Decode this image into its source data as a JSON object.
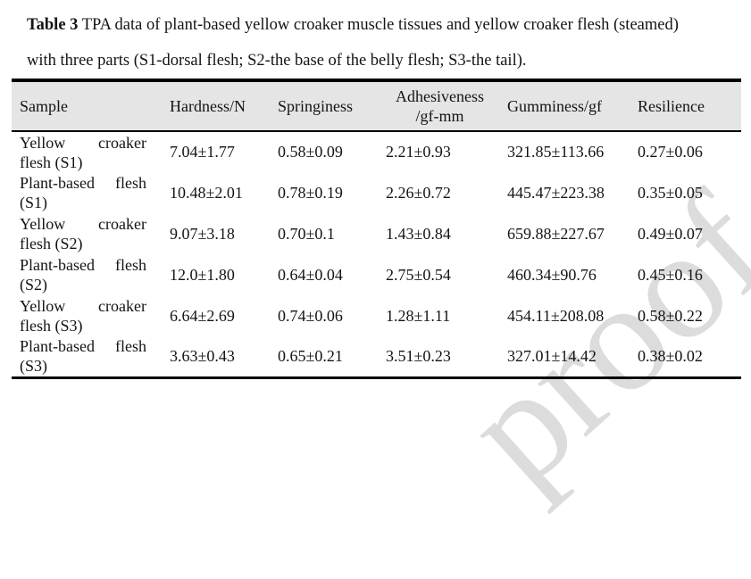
{
  "caption": {
    "label": "Table 3",
    "title": " TPA data of plant-based yellow croaker muscle tissues and yellow croaker flesh (steamed)",
    "line2": "with three parts (S1-dorsal flesh; S2-the base of the belly flesh; S3-the tail)."
  },
  "table": {
    "columns": [
      {
        "label": "Sample"
      },
      {
        "label": "Hardness/N"
      },
      {
        "label": "Springiness"
      },
      {
        "label": "Adhesiveness",
        "label2": "/gf-mm"
      },
      {
        "label": "Gumminess/gf"
      },
      {
        "label": "Resilience"
      }
    ],
    "rows": [
      {
        "sample": "Yellow croaker flesh (S1)",
        "hardness": "7.04±1.77",
        "springiness": "0.58±0.09",
        "adhesiveness": "2.21±0.93",
        "gumminess": "321.85±113.66",
        "resilience": "0.27±0.06"
      },
      {
        "sample": "Plant-based flesh (S1)",
        "hardness": "10.48±2.01",
        "springiness": "0.78±0.19",
        "adhesiveness": "2.26±0.72",
        "gumminess": "445.47±223.38",
        "resilience": "0.35±0.05"
      },
      {
        "sample": "Yellow croaker flesh (S2)",
        "hardness": "9.07±3.18",
        "springiness": "0.70±0.1",
        "adhesiveness": "1.43±0.84",
        "gumminess": "659.88±227.67",
        "resilience": "0.49±0.07"
      },
      {
        "sample": "Plant-based flesh (S2)",
        "hardness": "12.0±1.80",
        "springiness": "0.64±0.04",
        "adhesiveness": "2.75±0.54",
        "gumminess": "460.34±90.76",
        "resilience": "0.45±0.16"
      },
      {
        "sample": "Yellow croaker flesh (S3)",
        "hardness": "6.64±2.69",
        "springiness": "0.74±0.06",
        "adhesiveness": "1.28±1.11",
        "gumminess": "454.11±208.08",
        "resilience": "0.58±0.22"
      },
      {
        "sample": "Plant-based flesh (S3)",
        "hardness": "3.63±0.43",
        "springiness": "0.65±0.21",
        "adhesiveness": "3.51±0.23",
        "gumminess": "327.01±14.42",
        "resilience": "0.38±0.02"
      }
    ]
  },
  "watermark": {
    "text": "proof"
  },
  "colors": {
    "header_bg": "#e5e5e5",
    "border_color": "#000000",
    "text_color": "#141414",
    "watermark_color": "#dcdcdc",
    "page_bg": "#ffffff"
  }
}
